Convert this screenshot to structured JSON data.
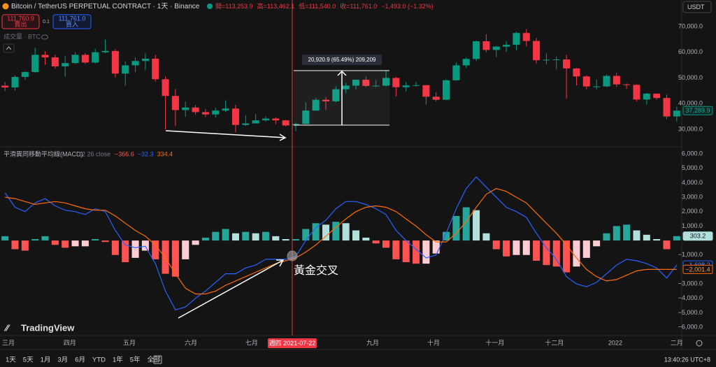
{
  "header": {
    "symbol": "Bitcoin / TetherUS PERPETUAL CONTRACT · 1天 · Binance",
    "ohlc": [
      "開=113,253.9",
      "高=113,462.1",
      "低=111,540.0",
      "收=111,761.0",
      "−1,493.0 (−1.32%)"
    ]
  },
  "order": {
    "sell_price": "111,760.9",
    "sell": "賣出",
    "qty": "0.1",
    "buy_price": "111,761.0",
    "buy": "買入"
  },
  "volume_label": "成交量 · BTC",
  "currency": "USDT",
  "chart_data": [
    {
      "type": "candlestick",
      "up_color": "#089981",
      "down_color": "#f23645",
      "open": [
        47000,
        46300,
        50400,
        52300,
        59000,
        58000,
        54500,
        55800,
        59000,
        56000,
        60000,
        60500,
        51700,
        54900,
        56600,
        57500,
        49500,
        43000,
        37500,
        38500,
        36700,
        35800,
        37300,
        38100,
        31700,
        32300,
        33500,
        34200,
        33500,
        31500,
        32100,
        37300,
        41500,
        40900,
        45600,
        47000,
        49300,
        46900,
        47000,
        50000,
        46400,
        47100,
        47200,
        42700,
        41500,
        49100,
        54900,
        57400,
        64300,
        60900,
        62200,
        62900,
        67500,
        64400,
        56900,
        57100,
        57200,
        53700,
        50600,
        46700,
        46700,
        50800,
        47500,
        47300,
        41600,
        43900,
        42200,
        35000
      ],
      "high": [
        48400,
        51000,
        52600,
        61700,
        60400,
        59000,
        58500,
        60000,
        59700,
        61300,
        64900,
        61200,
        56400,
        58000,
        59600,
        59000,
        50600,
        45700,
        40800,
        39500,
        37900,
        38300,
        41300,
        39500,
        35500,
        36000,
        35100,
        34600,
        33700,
        32600,
        40500,
        42300,
        42600,
        46700,
        48100,
        49400,
        50500,
        49200,
        52900,
        50500,
        48400,
        48500,
        47200,
        44500,
        49500,
        56100,
        58000,
        64500,
        67000,
        62500,
        64300,
        68000,
        69000,
        65600,
        59500,
        58300,
        59000,
        53900,
        51000,
        49400,
        51400,
        52000,
        47900,
        47600,
        44100,
        44000,
        43500,
        38800
      ],
      "low": [
        44900,
        45100,
        49300,
        52000,
        55100,
        53600,
        50500,
        55500,
        55500,
        55600,
        59600,
        50200,
        47000,
        52300,
        53000,
        48600,
        30000,
        31200,
        34900,
        35700,
        34800,
        34600,
        36800,
        28800,
        31300,
        32700,
        33000,
        32000,
        31100,
        29300,
        32000,
        37200,
        37500,
        40500,
        44000,
        45500,
        46400,
        46400,
        46700,
        42800,
        44700,
        46700,
        39600,
        40800,
        41400,
        48900,
        53900,
        56600,
        60000,
        58100,
        60200,
        60800,
        62300,
        55600,
        55300,
        53300,
        42000,
        47100,
        45600,
        45500,
        46400,
        46500,
        45700,
        40800,
        39600,
        41600,
        34000,
        33000
      ],
      "close": [
        46300,
        50400,
        52300,
        59000,
        58000,
        54500,
        55800,
        59000,
        56000,
        60000,
        60500,
        51700,
        54900,
        56600,
        57500,
        49500,
        43000,
        37500,
        38500,
        36700,
        35800,
        37300,
        38100,
        31700,
        32300,
        33500,
        34200,
        33500,
        31500,
        32100,
        37300,
        41500,
        40900,
        45600,
        47000,
        49300,
        46900,
        47000,
        50000,
        46400,
        47100,
        47200,
        42700,
        41500,
        49100,
        54900,
        57400,
        64300,
        60900,
        62200,
        62900,
        67500,
        64400,
        56900,
        57100,
        57200,
        53700,
        50600,
        46700,
        46700,
        50800,
        47500,
        47300,
        41600,
        43900,
        42200,
        35000,
        37289.9
      ],
      "last_label": "37,289.9",
      "ylim": [
        24560,
        74900
      ],
      "yticks": [
        {
          "value": 70000,
          "label": "70,000.0"
        },
        {
          "value": 60000,
          "label": "60,000.0"
        },
        {
          "value": 50000,
          "label": "50,000.0"
        },
        {
          "value": 40000,
          "label": "40,000.0"
        },
        {
          "value": 30000,
          "label": "30,000.0"
        }
      ]
    },
    {
      "type": "macd",
      "title": "平滑異同移動平均線(MACD)",
      "params": "12 26 close",
      "legend_values": [
        "−366.6",
        "−32.3",
        "334.4"
      ],
      "macd_color": "#2962ff",
      "signal_color": "#ff6d00",
      "histogram_colors": [
        "#26a69a",
        "#b2dfdb",
        "#ff5252",
        "#ffcdd2"
      ],
      "histogram": [
        300,
        -600,
        -700,
        100,
        300,
        -300,
        -500,
        -400,
        -400,
        100,
        -100,
        -1000,
        -1500,
        -1200,
        -700,
        -1300,
        -2300,
        -2500,
        -1300,
        -300,
        200,
        600,
        800,
        500,
        600,
        500,
        600,
        300,
        100,
        100,
        800,
        1200,
        1100,
        1300,
        1200,
        700,
        200,
        -200,
        -500,
        -1300,
        -1500,
        -1600,
        -1600,
        -900,
        600,
        1700,
        2300,
        2100,
        500,
        -600,
        -1100,
        -1000,
        -1000,
        -1400,
        -1700,
        -1800,
        -2200,
        -1800,
        -1200,
        -400,
        500,
        1000,
        1100,
        700,
        400,
        100,
        -600,
        303.2
      ],
      "macd": [
        3300,
        2300,
        2000,
        2600,
        2900,
        2400,
        2100,
        2000,
        1800,
        2200,
        2000,
        700,
        -300,
        -500,
        -400,
        -1600,
        -3500,
        -4800,
        -4600,
        -4000,
        -3500,
        -2900,
        -2300,
        -2300,
        -1900,
        -1700,
        -1300,
        -1300,
        -1300,
        -1100,
        0,
        900,
        1400,
        2200,
        2700,
        2700,
        2500,
        2200,
        1800,
        700,
        0,
        -600,
        -1200,
        -1000,
        500,
        2200,
        3600,
        4400,
        3700,
        3000,
        2300,
        2000,
        1600,
        500,
        -500,
        -1300,
        -2500,
        -3000,
        -3200,
        -2900,
        -2300,
        -1700,
        -1300,
        -1400,
        -1600,
        -1900,
        -2600,
        -1698.2
      ],
      "signal": [
        3000,
        2900,
        2700,
        2500,
        2600,
        2700,
        2600,
        2400,
        2200,
        2100,
        2100,
        1700,
        1200,
        700,
        300,
        -300,
        -1200,
        -2300,
        -3300,
        -3700,
        -3700,
        -3500,
        -3100,
        -2800,
        -2500,
        -2200,
        -1900,
        -1600,
        -1400,
        -1200,
        -800,
        -300,
        300,
        900,
        1500,
        2000,
        2300,
        2400,
        2300,
        2000,
        1500,
        1000,
        400,
        -100,
        -100,
        500,
        1300,
        2300,
        3200,
        3600,
        3400,
        3000,
        2600,
        1900,
        1200,
        500,
        -300,
        -1200,
        -2000,
        -2500,
        -2800,
        -2700,
        -2400,
        -2100,
        -2000,
        -2000,
        -2000,
        -2001.4
      ],
      "last_labels": {
        "histogram": "303.2",
        "macd": "−1,698.2",
        "signal": "−2,001.4"
      },
      "ylim": [
        -6480,
        6390
      ],
      "yticks": [
        {
          "value": 6000,
          "label": "6,000.0"
        },
        {
          "value": 5000,
          "label": "5,000.0"
        },
        {
          "value": 4000,
          "label": "4,000.0"
        },
        {
          "value": 3000,
          "label": "3,000.0"
        },
        {
          "value": 2000,
          "label": "2,000.0"
        },
        {
          "value": 1000,
          "label": "1,000.0"
        },
        {
          "value": -1000,
          "label": "−1,000.0"
        },
        {
          "value": -3000,
          "label": "−3,000.0"
        },
        {
          "value": -4000,
          "label": "−4,000.0"
        },
        {
          "value": -5000,
          "label": "−5,000.0"
        },
        {
          "value": -6000,
          "label": "−6,000.0"
        }
      ],
      "xticks": [
        {
          "value": 0.34,
          "label": "三月"
        },
        {
          "value": 6.47,
          "label": "四月"
        },
        {
          "value": 12.4,
          "label": "五月"
        },
        {
          "value": 18.54,
          "label": "六月"
        },
        {
          "value": 24.6,
          "label": "七月"
        },
        {
          "value": 36.67,
          "label": "九月"
        },
        {
          "value": 42.74,
          "label": "十月"
        },
        {
          "value": 48.87,
          "label": "十一月"
        },
        {
          "value": 54.8,
          "label": "十二月"
        },
        {
          "value": 60.87,
          "label": "2022"
        },
        {
          "value": 67.0,
          "label": "二月"
        }
      ],
      "crosshair": {
        "value": 28.65,
        "label": "週四 2021-07-22"
      }
    }
  ],
  "annotations": {
    "measure": "20,920.9 (65.49%) 209,209",
    "golden_cross": "黃金交叉"
  },
  "logo": "TradingView",
  "toolbar": {
    "ranges": [
      "1天",
      "5天",
      "1月",
      "3月",
      "6月",
      "YTD",
      "1年",
      "5年",
      "全部"
    ],
    "time": "13:40:26 UTC+8"
  }
}
